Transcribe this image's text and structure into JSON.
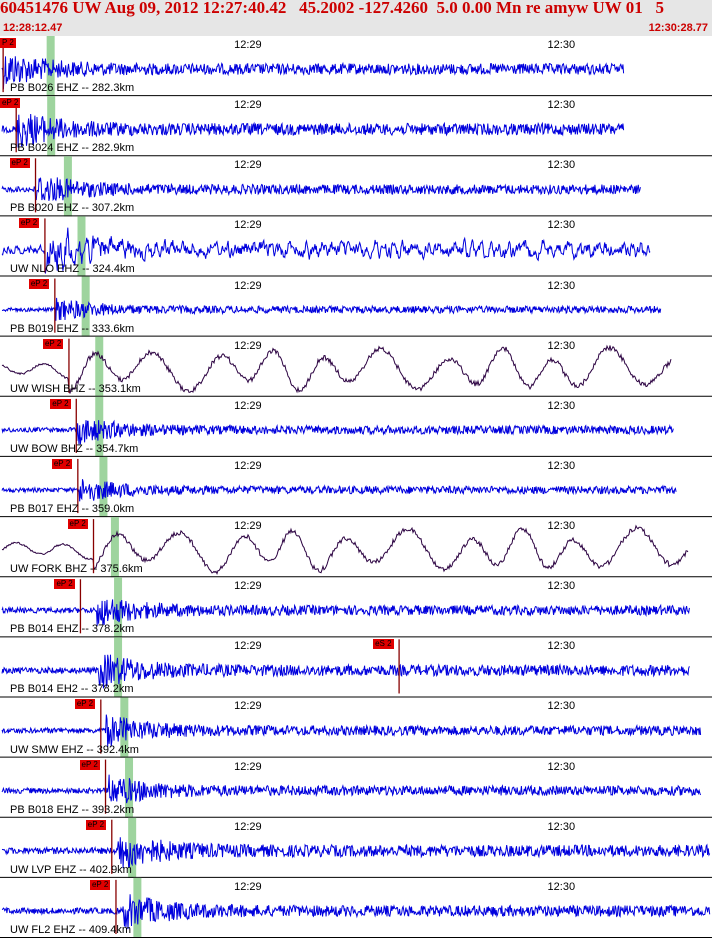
{
  "header": {
    "title": "60451476 UW Aug 09, 2012 12:27:40.42   45.2002 -127.4260  5.0 0.00 Mn re amyw UW 01   5",
    "start_time": "12:28:12.47",
    "end_time": "12:30:28.77"
  },
  "colors": {
    "header_bg": "#e6e6e6",
    "header_text": "#cc0000",
    "trace_blue": "#0000dd",
    "trace_dark": "#2a0040",
    "pick_red": "#e00000",
    "pick_line": "#880000",
    "model_green": "#9ed49e",
    "separator": "#000000"
  },
  "time_axis": {
    "start_s": 0,
    "end_s": 136.3,
    "ticks": [
      {
        "label": "12:29",
        "t": 47.5
      },
      {
        "label": "12:30",
        "t": 107.5
      }
    ]
  },
  "traces": [
    {
      "label": "PB B026 EHZ -- 282.3km",
      "pick_label": "P 2",
      "pick_t": 0.6,
      "green_t": 9.7,
      "end_t": 119.5,
      "amp": 0.34,
      "style": "hf",
      "event_t": 0.6
    },
    {
      "label": "PB B024 EHZ -- 282.9km",
      "pick_label": "eP 2",
      "pick_t": 3.1,
      "green_t": 9.8,
      "end_t": 119.5,
      "amp": 0.36,
      "style": "hf",
      "event_t": 3.1
    },
    {
      "label": "PB B020 EHZ -- 307.2km",
      "pick_label": "eP 2",
      "pick_t": 6.8,
      "green_t": 13.0,
      "end_t": 122.6,
      "amp": 0.3,
      "style": "hf",
      "event_t": 6.8
    },
    {
      "label": "UW NLO EHZ -- 324.4km",
      "pick_label": "eP 2",
      "pick_t": 8.6,
      "green_t": 15.6,
      "end_t": 124.6,
      "amp": 0.62,
      "style": "mf",
      "event_t": 8.6
    },
    {
      "label": "PB B019 EHZ -- 333.6km",
      "pick_label": "eP 2",
      "pick_t": 10.5,
      "green_t": 16.4,
      "end_t": 126.5,
      "amp": 0.22,
      "style": "hf",
      "event_t": 10.5
    },
    {
      "label": "UW WISH BHZ -- 353.1km",
      "pick_label": "eP 2",
      "pick_t": 13.2,
      "green_t": 19.0,
      "end_t": 128.6,
      "amp": 0.6,
      "style": "lf",
      "event_t": 13.2
    },
    {
      "label": "UW BOW BHZ -- 354.7km",
      "pick_label": "eP 2",
      "pick_t": 14.6,
      "green_t": 19.0,
      "end_t": 129.0,
      "amp": 0.26,
      "style": "hf",
      "event_t": 14.6
    },
    {
      "label": "PB B017 EHZ -- 359.0km",
      "pick_label": "eP 2",
      "pick_t": 14.9,
      "green_t": 19.8,
      "end_t": 129.5,
      "amp": 0.24,
      "style": "hf",
      "event_t": 14.9
    },
    {
      "label": "UW FORK BHZ -- 375.6km",
      "pick_label": "eP 2",
      "pick_t": 17.9,
      "green_t": 22.0,
      "end_t": 131.8,
      "amp": 0.6,
      "style": "lf",
      "event_t": 17.9
    },
    {
      "label": "PB B014 EHZ -- 378.2km",
      "pick_label": "eP 2",
      "pick_t": 15.4,
      "green_t": 22.6,
      "end_t": 132.0,
      "amp": 0.3,
      "style": "hf",
      "event_t": 18.5
    },
    {
      "label": "PB B014 EH2 -- 378.2km",
      "pick_label": "eS 2",
      "pick_t": 76.4,
      "green_t": 22.6,
      "end_t": 132.0,
      "amp": 0.34,
      "style": "hf",
      "event_t": 18.8
    },
    {
      "label": "UW SMW EHZ -- 392.4km",
      "pick_label": "eP 2",
      "pick_t": 19.3,
      "green_t": 23.8,
      "end_t": 134.2,
      "amp": 0.3,
      "style": "hf",
      "event_t": 20.2
    },
    {
      "label": "PB B018 EHZ -- 393.2km",
      "pick_label": "eP 2",
      "pick_t": 20.2,
      "green_t": 24.7,
      "end_t": 134.2,
      "amp": 0.3,
      "style": "hf",
      "event_t": 20.8
    },
    {
      "label": "UW LVP EHZ -- 402.9km",
      "pick_label": "eP 2",
      "pick_t": 21.4,
      "green_t": 25.3,
      "end_t": 136.3,
      "amp": 0.36,
      "style": "hf",
      "event_t": 22.6
    },
    {
      "label": "UW FL2 EHZ -- 409.4km",
      "pick_label": "eP 2",
      "pick_t": 22.2,
      "green_t": 26.3,
      "end_t": 136.3,
      "amp": 0.34,
      "style": "hf",
      "event_t": 23.5
    }
  ]
}
